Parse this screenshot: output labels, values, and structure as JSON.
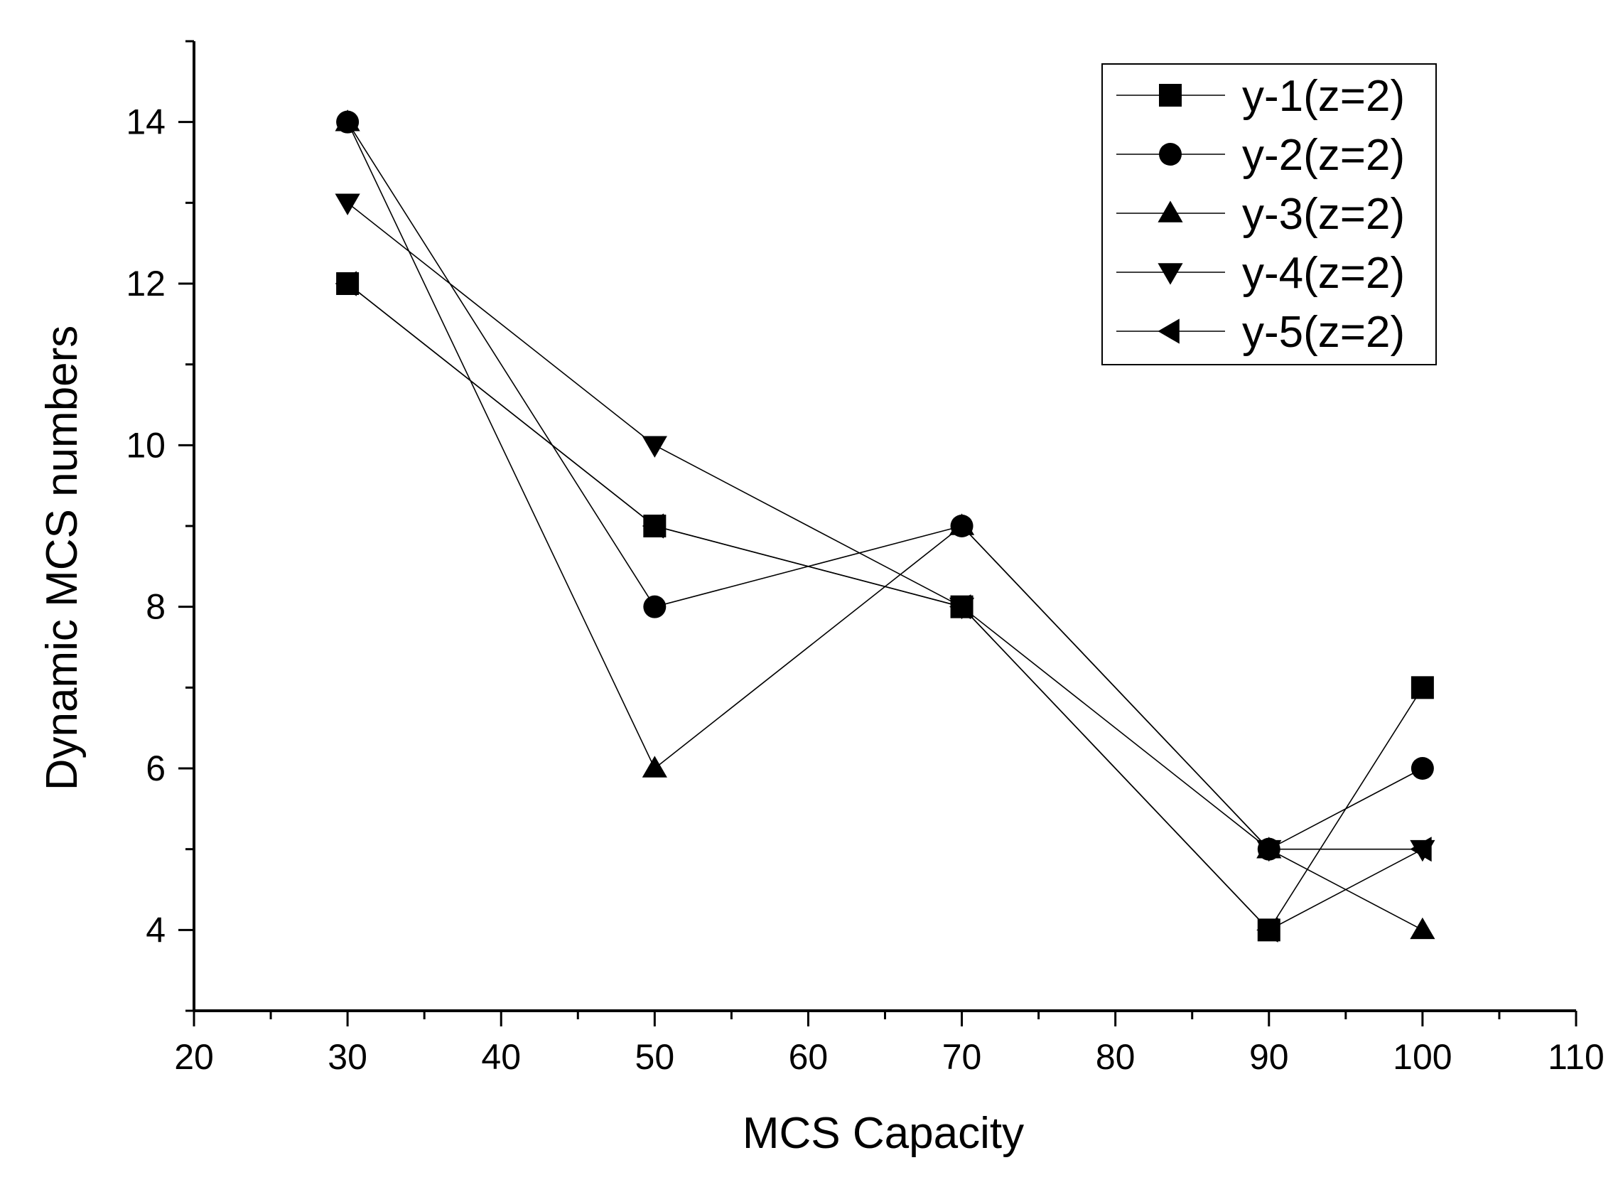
{
  "chart_data": {
    "type": "line",
    "title": "",
    "xlabel": "MCS Capacity",
    "ylabel": "Dynamic MCS numbers",
    "xlim": [
      20,
      110
    ],
    "ylim": [
      3,
      15
    ],
    "x_ticks": [
      "20",
      "30",
      "40",
      "50",
      "60",
      "70",
      "80",
      "90",
      "100",
      "110"
    ],
    "y_ticks": [
      "4",
      "6",
      "8",
      "10",
      "12",
      "14"
    ],
    "legend_position": "top-right",
    "x": [
      30,
      50,
      70,
      90,
      100
    ],
    "series": [
      {
        "name": "y-1(z=2)",
        "marker": "square",
        "values": [
          12,
          9,
          8,
          4,
          7
        ]
      },
      {
        "name": "y-2(z=2)",
        "marker": "circle",
        "values": [
          14,
          8,
          9,
          5,
          6
        ]
      },
      {
        "name": "y-3(z=2)",
        "marker": "triangle-up",
        "values": [
          14,
          6,
          9,
          5,
          4
        ]
      },
      {
        "name": "y-4(z=2)",
        "marker": "triangle-down",
        "values": [
          13,
          10,
          8,
          5,
          5
        ]
      },
      {
        "name": "y-5(z=2)",
        "marker": "triangle-left",
        "values": [
          12,
          9,
          8,
          4,
          5
        ]
      }
    ],
    "colors": {
      "line": "#000000",
      "marker": "#000000",
      "background": "#ffffff"
    }
  }
}
